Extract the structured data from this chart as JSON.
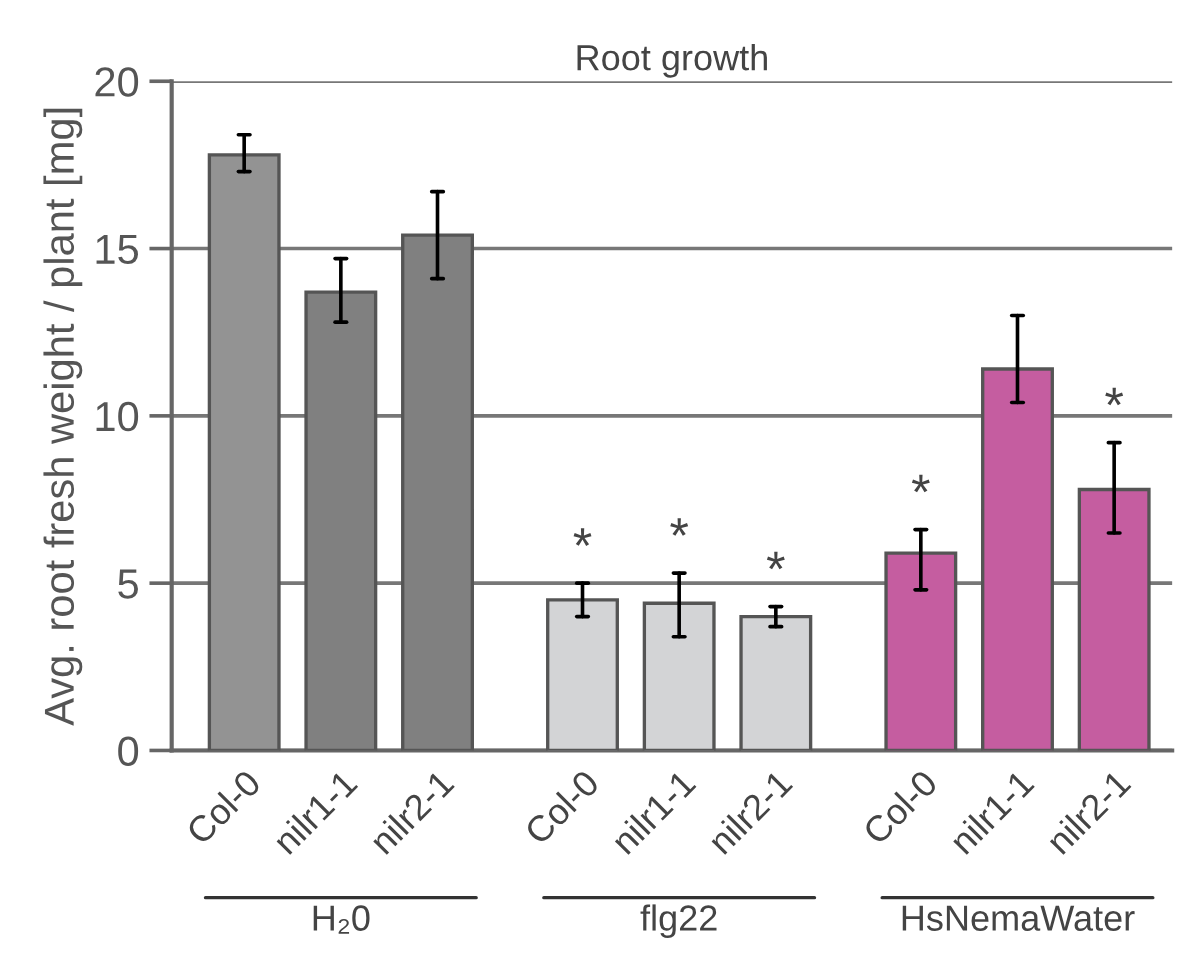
{
  "chart_data": {
    "type": "bar",
    "title": "Root growth",
    "ylabel": "Avg. root fresh weight / plant [mg]",
    "categories": [
      "Col-0",
      "nilr1-1",
      "nilr2-1",
      "Col-0",
      "nilr1-1",
      "nilr2-1",
      "Col-0",
      "nilr1-1",
      "nilr2-1"
    ],
    "values": [
      17.8,
      13.7,
      15.4,
      4.5,
      4.4,
      4.0,
      5.9,
      11.4,
      7.8
    ],
    "errors": [
      [
        17.3,
        18.4
      ],
      [
        12.8,
        14.7
      ],
      [
        14.1,
        16.7
      ],
      [
        4.0,
        5.0
      ],
      [
        3.4,
        5.3
      ],
      [
        3.7,
        4.3
      ],
      [
        4.8,
        6.6
      ],
      [
        10.4,
        13.0
      ],
      [
        6.5,
        9.2
      ]
    ],
    "value_labels": [
      null,
      null,
      null,
      "*",
      "*",
      "*",
      "*",
      null,
      "*"
    ],
    "colors": [
      "#939393",
      "#808080",
      "#808080",
      "#d3d4d6",
      "#d3d4d6",
      "#d3d4d6",
      "#c55da0",
      "#c55da0",
      "#c55da0"
    ],
    "annotations": [
      "H₂0",
      "flg22",
      "HsNemaWater"
    ],
    "ylim": [
      0,
      20
    ],
    "yticks": [
      0,
      5,
      10,
      15,
      20
    ],
    "grid": "y"
  }
}
